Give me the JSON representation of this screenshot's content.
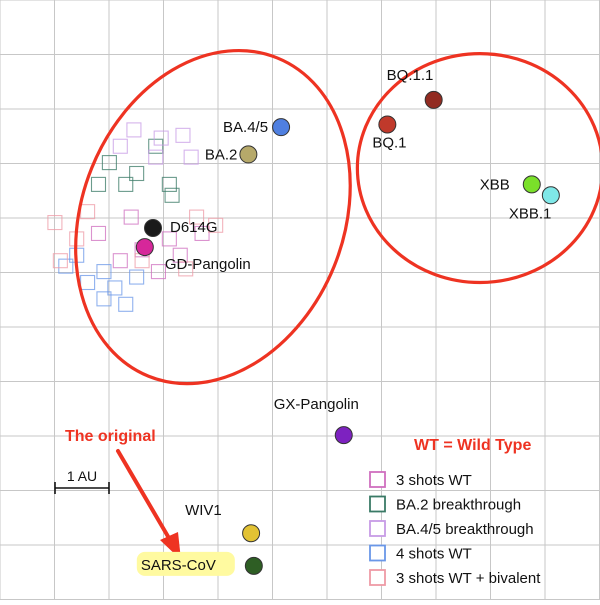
{
  "chart_data": {
    "type": "scatter",
    "title": "",
    "xlabel": "",
    "ylabel": "",
    "grid": true,
    "scale_bar_label": "1 AU",
    "antigens": [
      {
        "name": "D614G",
        "x": 0.0,
        "y": 0.0,
        "color": "#1a1a1a"
      },
      {
        "name": "GD-Pangolin",
        "x": -0.15,
        "y": 0.35,
        "color": "#d6279a"
      },
      {
        "name": "BA.2",
        "x": 1.75,
        "y": -1.35,
        "color": "#b6a96a"
      },
      {
        "name": "BA.4/5",
        "x": 2.35,
        "y": -1.85,
        "color": "#4f7fe0"
      },
      {
        "name": "BQ.1",
        "x": 4.3,
        "y": -1.9,
        "color": "#c0392b"
      },
      {
        "name": "BQ.1.1",
        "x": 5.15,
        "y": -2.35,
        "color": "#922b21"
      },
      {
        "name": "XBB",
        "x": 6.95,
        "y": -0.8,
        "color": "#7ae02a"
      },
      {
        "name": "XBB.1",
        "x": 7.3,
        "y": -0.6,
        "color": "#7fe8e8"
      },
      {
        "name": "GX-Pangolin",
        "x": 3.5,
        "y": 3.8,
        "color": "#7d22c0"
      },
      {
        "name": "WIV1",
        "x": 1.8,
        "y": 5.6,
        "color": "#e2c234"
      },
      {
        "name": "SARS-CoV",
        "x": 1.85,
        "y": 6.2,
        "color": "#2e5e24"
      }
    ],
    "sera_groups": [
      {
        "name": "3 shots WT",
        "color": "#cf6fbf",
        "points": [
          [
            -0.6,
            0.6
          ],
          [
            -0.2,
            0.4
          ],
          [
            0.3,
            0.2
          ],
          [
            -1.0,
            0.1
          ],
          [
            -0.4,
            -0.2
          ],
          [
            0.5,
            0.5
          ],
          [
            0.9,
            0.1
          ],
          [
            0.1,
            0.8
          ]
        ]
      },
      {
        "name": "BA.2 breakthrough",
        "color": "#3a7a66",
        "points": [
          [
            -1.0,
            -0.8
          ],
          [
            -0.5,
            -0.8
          ],
          [
            0.3,
            -0.8
          ],
          [
            0.35,
            -0.6
          ],
          [
            -0.3,
            -1.0
          ],
          [
            0.05,
            -1.5
          ],
          [
            -0.8,
            -1.2
          ]
        ]
      },
      {
        "name": "BA.4/5 breakthrough",
        "color": "#c79be6",
        "points": [
          [
            0.55,
            -1.7
          ],
          [
            0.15,
            -1.65
          ],
          [
            -0.35,
            -1.8
          ],
          [
            0.7,
            -1.3
          ],
          [
            -0.6,
            -1.5
          ],
          [
            0.05,
            -1.3
          ]
        ]
      },
      {
        "name": "4 shots WT",
        "color": "#6a97e8",
        "points": [
          [
            -1.6,
            0.7
          ],
          [
            -1.4,
            0.5
          ],
          [
            -0.9,
            0.8
          ],
          [
            -0.7,
            1.1
          ],
          [
            -0.3,
            0.9
          ],
          [
            -0.9,
            1.3
          ],
          [
            -0.5,
            1.4
          ],
          [
            -1.2,
            1.0
          ]
        ]
      },
      {
        "name": "3 shots WT + bivalent",
        "color": "#ee9aa6",
        "points": [
          [
            -1.8,
            -0.1
          ],
          [
            -1.4,
            0.2
          ],
          [
            0.8,
            -0.2
          ],
          [
            1.15,
            -0.05
          ],
          [
            -0.2,
            0.6
          ],
          [
            -1.7,
            0.6
          ],
          [
            0.6,
            0.75
          ],
          [
            -1.2,
            -0.3
          ]
        ]
      }
    ],
    "clusters": [
      {
        "cx": 1.1,
        "cy": -0.2,
        "rx": 2.4,
        "ry": 3.15,
        "rotate": 22
      },
      {
        "cx": 6.0,
        "cy": -1.1,
        "rx": 2.25,
        "ry": 2.1,
        "rotate": 0
      }
    ]
  },
  "annotations": {
    "original_label": "The original",
    "legend_title": "WT = Wild Type",
    "highlighted": "SARS-CoV"
  },
  "colors": {
    "accent_red": "#ee3322",
    "grid": "#c7c7c7",
    "cluster_outline": "#ee3322",
    "highlight": "#fffaa0"
  }
}
